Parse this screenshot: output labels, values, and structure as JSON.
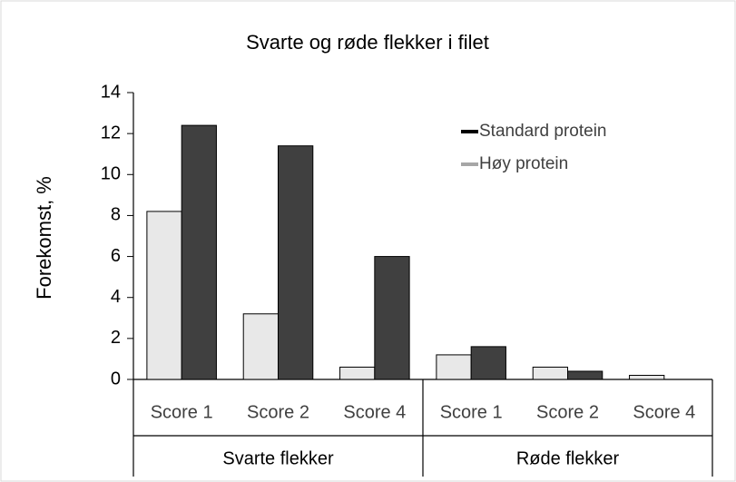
{
  "chart_data": {
    "type": "bar",
    "title": "Svarte og røde flekker i filet",
    "y_label": "Forekomst, %",
    "categories": [
      "Score 1",
      "Score 2",
      "Score 4",
      "Score 1",
      "Score 2",
      "Score 4"
    ],
    "groups": [
      "Svarte flekker",
      "Røde flekker"
    ],
    "series": [
      {
        "name": "Høy protein",
        "color": "#e8e8e8",
        "legend_color": "#a6a6a6",
        "values": [
          8.2,
          3.2,
          0.6,
          1.2,
          0.6,
          0.2
        ]
      },
      {
        "name": "Standard protein",
        "color": "#404040",
        "legend_color": "#000000",
        "values": [
          12.4,
          11.4,
          6.0,
          1.6,
          0.4,
          0
        ]
      }
    ],
    "ylim": [
      0,
      14
    ],
    "yticks": [
      0,
      2,
      4,
      6,
      8,
      10,
      12,
      14
    ],
    "grid": false,
    "legend": "upper right"
  }
}
